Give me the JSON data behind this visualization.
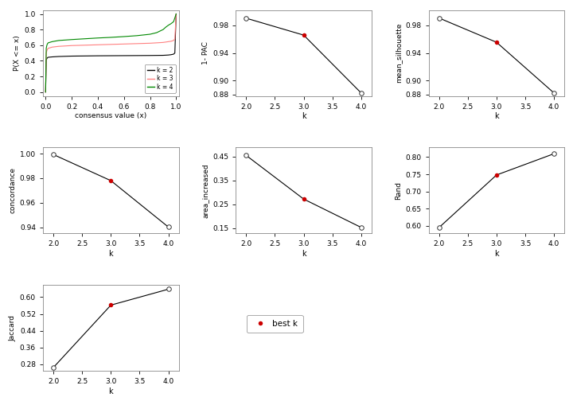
{
  "ecdf": {
    "k2": {
      "x": [
        0.0,
        0.005,
        0.01,
        0.015,
        0.02,
        0.05,
        0.1,
        0.2,
        0.3,
        0.4,
        0.5,
        0.6,
        0.7,
        0.8,
        0.85,
        0.9,
        0.92,
        0.94,
        0.96,
        0.98,
        0.99,
        1.0
      ],
      "y": [
        0.0,
        0.41,
        0.43,
        0.44,
        0.445,
        0.45,
        0.455,
        0.46,
        0.462,
        0.464,
        0.465,
        0.466,
        0.467,
        0.468,
        0.469,
        0.47,
        0.472,
        0.474,
        0.478,
        0.485,
        0.5,
        1.0
      ],
      "color": "#000000"
    },
    "k3": {
      "x": [
        0.0,
        0.005,
        0.01,
        0.015,
        0.02,
        0.05,
        0.1,
        0.2,
        0.3,
        0.4,
        0.5,
        0.6,
        0.7,
        0.8,
        0.85,
        0.9,
        0.92,
        0.94,
        0.96,
        0.98,
        0.99,
        1.0
      ],
      "y": [
        0.0,
        0.5,
        0.53,
        0.55,
        0.56,
        0.575,
        0.585,
        0.595,
        0.6,
        0.605,
        0.61,
        0.615,
        0.62,
        0.625,
        0.63,
        0.635,
        0.64,
        0.645,
        0.65,
        0.66,
        0.68,
        1.0
      ],
      "color": "#ff8080"
    },
    "k4": {
      "x": [
        0.0,
        0.005,
        0.01,
        0.015,
        0.02,
        0.05,
        0.1,
        0.2,
        0.3,
        0.4,
        0.5,
        0.6,
        0.7,
        0.8,
        0.85,
        0.9,
        0.92,
        0.94,
        0.96,
        0.98,
        0.99,
        1.0
      ],
      "y": [
        0.0,
        0.56,
        0.6,
        0.62,
        0.63,
        0.645,
        0.66,
        0.672,
        0.682,
        0.692,
        0.7,
        0.71,
        0.722,
        0.74,
        0.76,
        0.8,
        0.83,
        0.855,
        0.875,
        0.9,
        0.95,
        1.0
      ],
      "color": "#008800"
    }
  },
  "pac": {
    "k": [
      2,
      3,
      4
    ],
    "y": [
      0.9902,
      0.9658,
      0.8822
    ],
    "best_k": 3,
    "ylabel": "1- PAC",
    "ylim": [
      0.878,
      1.002
    ],
    "yticks": [
      0.88,
      0.9,
      0.94,
      0.98
    ]
  },
  "silhouette": {
    "k": [
      2,
      3,
      4
    ],
    "y": [
      0.9905,
      0.9555,
      0.8822
    ],
    "best_k": 3,
    "ylabel": "mean_silhouette",
    "ylim": [
      0.878,
      1.002
    ],
    "yticks": [
      0.88,
      0.9,
      0.94,
      0.98
    ]
  },
  "concordance": {
    "k": [
      2,
      3,
      4
    ],
    "y": [
      0.9993,
      0.978,
      0.9402
    ],
    "best_k": 3,
    "ylabel": "concordance",
    "ylim": [
      0.935,
      1.005
    ],
    "yticks": [
      0.94,
      0.96,
      0.98,
      1.0
    ]
  },
  "area_increased": {
    "k": [
      2,
      3,
      4
    ],
    "y": [
      0.455,
      0.272,
      0.153
    ],
    "best_k": 3,
    "ylabel": "area_increased",
    "ylim": [
      0.128,
      0.488
    ],
    "yticks": [
      0.15,
      0.25,
      0.35,
      0.45
    ]
  },
  "rand": {
    "k": [
      2,
      3,
      4
    ],
    "y": [
      0.595,
      0.748,
      0.81
    ],
    "best_k": 3,
    "ylabel": "Rand",
    "ylim": [
      0.578,
      0.828
    ],
    "yticks": [
      0.6,
      0.65,
      0.7,
      0.75,
      0.8
    ]
  },
  "jaccard": {
    "k": [
      2,
      3,
      4
    ],
    "y": [
      0.264,
      0.562,
      0.638
    ],
    "best_k": 3,
    "ylabel": "Jaccard",
    "ylim": [
      0.248,
      0.658
    ],
    "yticks": [
      0.28,
      0.36,
      0.44,
      0.52,
      0.6
    ]
  },
  "legend_items": [
    {
      "label": "k = 2",
      "color": "#000000"
    },
    {
      "label": "k = 3",
      "color": "#ff8080"
    },
    {
      "label": "k = 4",
      "color": "#008800"
    }
  ],
  "best_k_color": "#cc0000",
  "line_color": "#000000",
  "ecdf_xlabel": "consensus value (x)",
  "ecdf_ylabel": "P(X <= x)"
}
